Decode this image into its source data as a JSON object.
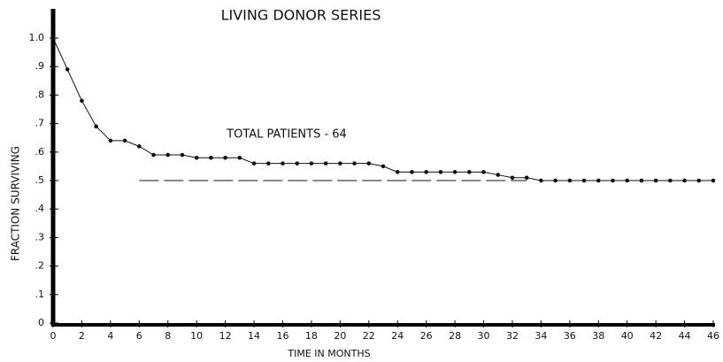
{
  "chart_data": {
    "type": "line",
    "title": "LIVING DONOR SERIES",
    "annotation": "TOTAL PATIENTS - 64",
    "xlabel": "TIME IN MONTHS",
    "ylabel": "FRACTION SURVIVING",
    "x": [
      0,
      1,
      2,
      3,
      4,
      5,
      6,
      7,
      8,
      9,
      10,
      11,
      12,
      13,
      14,
      15,
      16,
      17,
      18,
      19,
      20,
      21,
      22,
      23,
      24,
      25,
      26,
      27,
      28,
      29,
      30,
      31,
      32,
      33,
      34,
      35,
      36,
      37,
      38,
      39,
      40,
      41,
      42,
      43,
      44,
      45,
      46
    ],
    "series": [
      {
        "color": "#111111",
        "values": [
          1.0,
          0.89,
          0.78,
          0.69,
          0.64,
          0.64,
          0.62,
          0.59,
          0.59,
          0.59,
          0.58,
          0.58,
          0.58,
          0.58,
          0.56,
          0.56,
          0.56,
          0.56,
          0.56,
          0.56,
          0.56,
          0.56,
          0.56,
          0.55,
          0.53,
          0.53,
          0.53,
          0.53,
          0.53,
          0.53,
          0.53,
          0.52,
          0.51,
          0.51,
          0.5,
          0.5,
          0.5,
          0.5,
          0.5,
          0.5,
          0.5,
          0.5,
          0.5,
          0.5,
          0.5,
          0.5,
          0.5
        ]
      }
    ],
    "reference_line": {
      "y": 0.5,
      "x": [
        6,
        33
      ],
      "color": "#111111",
      "style": "dashed"
    },
    "xlim": [
      0,
      46
    ],
    "ylim": [
      0,
      1
    ],
    "xticks": [
      0,
      2,
      4,
      6,
      8,
      10,
      12,
      14,
      16,
      18,
      20,
      22,
      24,
      26,
      28,
      30,
      32,
      34,
      36,
      38,
      40,
      42,
      44,
      46
    ],
    "yticks": [
      0,
      {
        "value": 0.1,
        "label": ".1"
      },
      {
        "value": 0.2,
        "label": ".2"
      },
      {
        "value": 0.3,
        "label": ".3"
      },
      {
        "value": 0.4,
        "label": ".4"
      },
      {
        "value": 0.5,
        "label": ".5"
      },
      {
        "value": 0.6,
        "label": ".6"
      },
      {
        "value": 0.7,
        "label": ".7"
      },
      {
        "value": 0.8,
        "label": ".8"
      },
      {
        "value": 0.9,
        "label": ".9"
      },
      {
        "value": 1,
        "label": "1.0"
      }
    ],
    "grid": false
  }
}
